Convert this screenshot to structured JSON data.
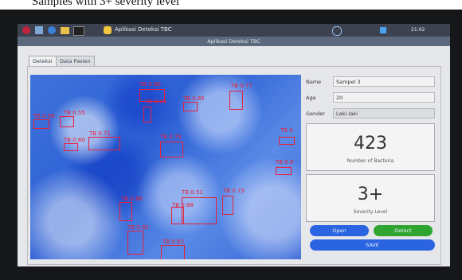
{
  "heading": "Samples with 3+ severity level",
  "taskbar": {
    "app": "Aplikasi Deteksi TBC",
    "time": "21:02"
  },
  "window_title": "Aplikasi Deteksi TBC",
  "tabs": [
    "Deteksi",
    "Data Pasien"
  ],
  "detections": [
    "TB 0.80",
    "TB 0.84",
    "TB 0.77",
    "TB 0.65",
    "TB 0.55",
    "TB 0.68",
    "TB 0.71",
    "TB 0.60",
    "TB 0.79",
    "TB 0.86",
    "TB 0.51",
    "TB 0.73",
    "TB 0.88",
    "TB 0.82",
    "TB 0.83",
    "TB 0.",
    "TB 0.6"
  ],
  "form": {
    "name_label": "Name",
    "name": "Sampel 3",
    "age_label": "Age",
    "age": "20",
    "gender_label": "Gender",
    "gender": "Laki-laki"
  },
  "bacteria": {
    "value": "423",
    "label": "Number of Bacteria"
  },
  "severity": {
    "value": "3+",
    "label": "Severity Level"
  },
  "buttons": {
    "open": "Open",
    "detect": "Detect",
    "save": "SAVE"
  }
}
